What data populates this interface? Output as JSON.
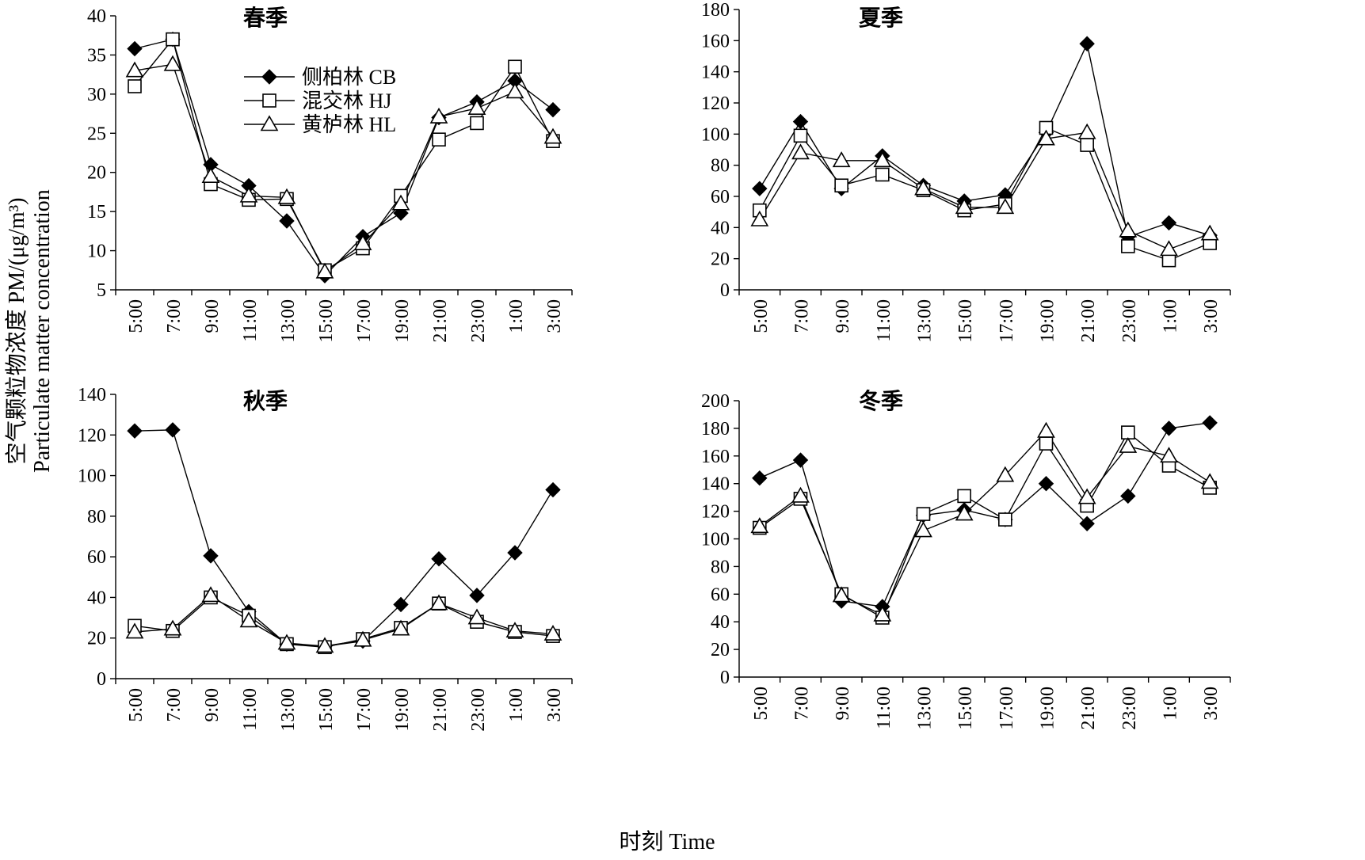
{
  "chart_data": {
    "type": "line",
    "ylabel": [
      "空气颗粒物浓度 PM/(μg/m³)",
      "Particulate matter concentration"
    ],
    "xlabel": "时刻 Time",
    "categories": [
      "5:00",
      "7:00",
      "9:00",
      "11:00",
      "13:00",
      "15:00",
      "17:00",
      "19:00",
      "21:00",
      "23:00",
      "1:00",
      "3:00"
    ],
    "legend": {
      "placement": "inside-top (spring panel)",
      "entries": [
        {
          "label": "侧柏林 CB",
          "marker": "filled-diamond"
        },
        {
          "label": "混交林 HJ",
          "marker": "open-square"
        },
        {
          "label": "黄栌林 HL",
          "marker": "open-triangle"
        }
      ]
    },
    "panels": [
      {
        "title": "春季",
        "ylim": [
          5,
          40
        ],
        "yticks": [
          5,
          10,
          15,
          20,
          25,
          30,
          35,
          40
        ],
        "series": [
          {
            "name": "侧柏林 CB",
            "values": [
              35.8,
              37.0,
              21.0,
              18.3,
              13.8,
              6.8,
              11.8,
              14.8,
              27.0,
              29.0,
              31.7,
              28.0
            ]
          },
          {
            "name": "混交林 HJ",
            "values": [
              31.0,
              37.0,
              18.5,
              16.5,
              16.6,
              7.5,
              10.3,
              17.0,
              24.2,
              26.3,
              33.5,
              24.0
            ]
          },
          {
            "name": "黄栌林 HL",
            "values": [
              33.0,
              33.8,
              19.5,
              17.0,
              16.8,
              7.3,
              10.9,
              16.0,
              27.1,
              28.2,
              30.3,
              24.5
            ]
          }
        ]
      },
      {
        "title": "夏季",
        "ylim": [
          0,
          180
        ],
        "yticks": [
          0,
          20,
          40,
          60,
          80,
          100,
          120,
          140,
          160,
          180
        ],
        "series": [
          {
            "name": "侧柏林 CB",
            "values": [
              65,
              108,
              65,
              86,
              67,
              57,
              61,
              101,
              158,
              34,
              43,
              35
            ]
          },
          {
            "name": "混交林 HJ",
            "values": [
              51,
              99,
              67,
              74,
              64,
              51,
              55,
              104,
              93,
              28,
              19,
              30
            ]
          },
          {
            "name": "黄栌林 HL",
            "values": [
              45,
              88,
              83,
              83,
              65,
              53,
              53,
              97,
              101,
              38,
              26,
              36
            ]
          }
        ]
      },
      {
        "title": "秋季",
        "ylim": [
          0,
          140
        ],
        "yticks": [
          0,
          20,
          40,
          60,
          80,
          100,
          120,
          140
        ],
        "series": [
          {
            "name": "侧柏林 CB",
            "values": [
              122,
              122.5,
              60.5,
              33,
              17,
              16,
              18.5,
              36.5,
              59,
              41,
              62,
              93
            ]
          },
          {
            "name": "混交林 HJ",
            "values": [
              26,
              23.5,
              40,
              31,
              17,
              15.5,
              19.5,
              25,
              37,
              28,
              23,
              21
            ]
          },
          {
            "name": "黄栌林 HL",
            "values": [
              23,
              24.5,
              41,
              28.5,
              17.5,
              16,
              19,
              24.5,
              37,
              30,
              23.5,
              22
            ]
          }
        ]
      },
      {
        "title": "冬季",
        "ylim": [
          0,
          200
        ],
        "yticks": [
          0,
          20,
          40,
          60,
          80,
          100,
          120,
          140,
          160,
          180,
          200
        ],
        "series": [
          {
            "name": "侧柏林 CB",
            "values": [
              144,
              157,
              55,
              51,
              117,
              121,
              114,
              140,
              111,
              131,
              180,
              184
            ]
          },
          {
            "name": "混交林 HJ",
            "values": [
              108,
              129,
              60,
              43,
              118,
              131,
              114,
              169,
              124,
              177,
              153,
              137
            ]
          },
          {
            "name": "黄栌林 HL",
            "values": [
              109,
              131,
              59,
              45,
              106,
              118,
              146,
              178,
              130,
              167,
              160,
              141
            ]
          }
        ]
      }
    ]
  }
}
